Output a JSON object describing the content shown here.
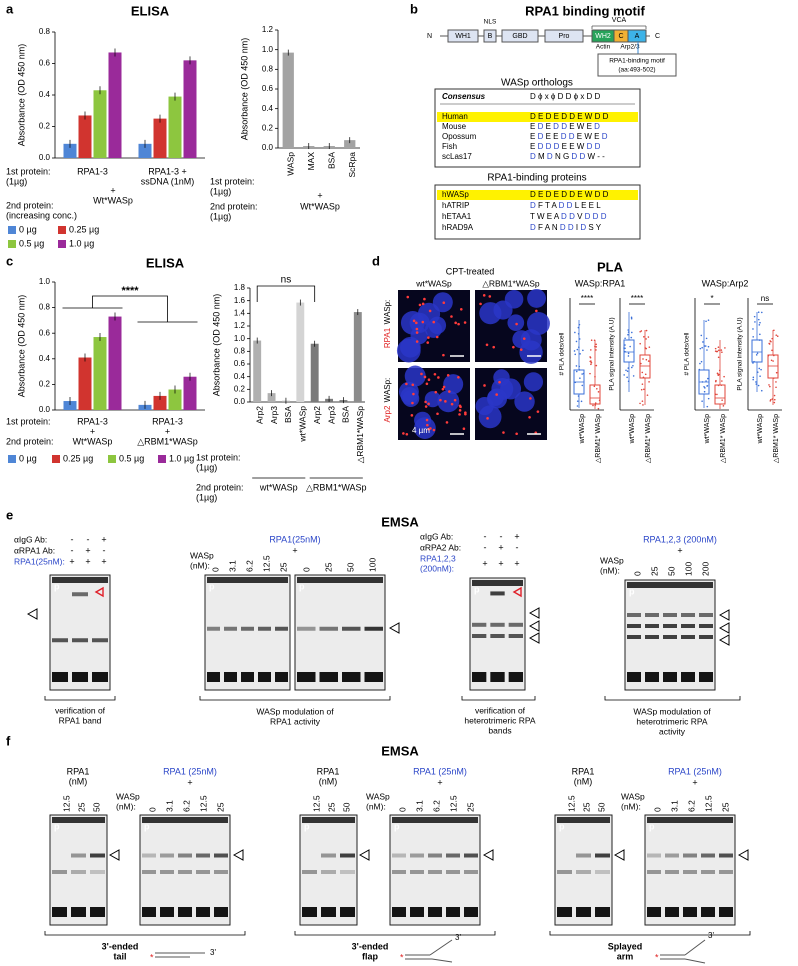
{
  "panel_a": {
    "label": "a",
    "title": "ELISA",
    "chart_1": {
      "type": "bar",
      "y_label": "Absorbance (OD 450 nm)",
      "ylim": [
        0,
        0.8
      ],
      "yticks": [
        {
          "value": 0,
          "label": "0.0"
        },
        {
          "value": 0.2,
          "label": "0.2"
        },
        {
          "value": 0.4,
          "label": "0.4"
        },
        {
          "value": 0.6,
          "label": "0.6"
        },
        {
          "value": 0.8,
          "label": "0.8"
        }
      ],
      "categories": [
        [
          "RPA1-3"
        ],
        [
          "RPA1-3 +",
          "ssDNA (1nM)"
        ]
      ],
      "series": [
        {
          "name": "0 µg",
          "color": "#4f86d6",
          "values": [
            0.09,
            0.09
          ]
        },
        {
          "name": "0.25 µg",
          "color": "#d1342f",
          "values": [
            0.27,
            0.25
          ]
        },
        {
          "name": "0.5 µg",
          "color": "#8dc63f",
          "values": [
            0.43,
            0.39
          ]
        },
        {
          "name": "1.0 µg",
          "color": "#9a2a9a",
          "values": [
            0.67,
            0.62
          ]
        }
      ],
      "first_protein": [
        "1st protein:",
        "(1µg)"
      ],
      "plus": "+",
      "second_protein_name": "Wt*WASp",
      "second_protein": [
        "2nd protein:",
        "(increasing conc.)"
      ]
    },
    "chart_2": {
      "type": "bar",
      "y_label": "Absorbance (OD 450 nm)",
      "ylim": [
        0,
        1.2
      ],
      "yticks": [
        {
          "value": 0,
          "label": "0.0"
        },
        {
          "value": 0.2,
          "label": "0.2"
        },
        {
          "value": 0.4,
          "label": "0.4"
        },
        {
          "value": 0.6,
          "label": "0.6"
        },
        {
          "value": 0.8,
          "label": "0.8"
        },
        {
          "value": 1,
          "label": "1.0"
        },
        {
          "value": 1.2,
          "label": "1.2"
        }
      ],
      "categories": [
        "WASp",
        "MAX",
        "BSA",
        "ScRpa"
      ],
      "values": [
        0.97,
        0.02,
        0.02,
        0.08
      ],
      "color": "#a3a3a3",
      "first_protein": [
        "1st protein:",
        "(1µg)"
      ],
      "plus": "+",
      "second_protein_name": "Wt*WASp",
      "second_protein": [
        "2nd protein:",
        "(1µg)"
      ]
    }
  },
  "panel_b": {
    "label": "b",
    "title": "RPA1 binding motif",
    "domains": {
      "n": "N",
      "c": "C",
      "boxes": [
        "WH1",
        "B",
        "GBD",
        "Pro",
        "WH2",
        "C",
        "A"
      ],
      "nls": "NLS",
      "vca": "VCA",
      "actin": "Actin",
      "arp": "Arp2/3",
      "motif": [
        "RPA1-binding motif",
        "(aa:493-502)"
      ]
    },
    "orthologs": {
      "title": "WASp orthologs",
      "header": [
        "Consensus",
        "D ϕ x ϕ D D ϕ x D D"
      ],
      "rows": [
        [
          "Human",
          "D E D E D D E W D D"
        ],
        [
          "Mouse",
          "E D E D D E W E D"
        ],
        [
          "Opossum",
          "E D E E D D E W E D"
        ],
        [
          "Fish",
          "E D D D E E W D D"
        ],
        [
          "scLas17",
          "D M D N G D D W - -"
        ]
      ]
    },
    "binding": {
      "title": "RPA1-binding proteins",
      "rows": [
        [
          "hWASp",
          "D E D E D D E W D D"
        ],
        [
          "hATRIP",
          "D F T A D D L E E L"
        ],
        [
          "hETAA1",
          "T W E A D D V D D D"
        ],
        [
          "hRAD9A",
          "D F A N D D I D S Y"
        ]
      ]
    }
  },
  "panel_c": {
    "label": "c",
    "title": "ELISA",
    "chart_1": {
      "type": "bar",
      "y_label": "Absorbance (OD 450 nm)",
      "ylim": [
        0,
        1
      ],
      "yticks": [
        {
          "value": 0,
          "label": "0.0"
        },
        {
          "value": 0.2,
          "label": "0.2"
        },
        {
          "value": 0.4,
          "label": "0.4"
        },
        {
          "value": 0.6,
          "label": "0.6"
        },
        {
          "value": 0.8,
          "label": "0.8"
        },
        {
          "value": 1,
          "label": "1.0"
        }
      ],
      "categories": [
        [
          "RPA1-3"
        ],
        [
          "RPA1-3"
        ]
      ],
      "series": [
        {
          "name": "0 µg",
          "color": "#4f86d6",
          "values": [
            0.07,
            0.04
          ]
        },
        {
          "name": "0.25 µg",
          "color": "#d1342f",
          "values": [
            0.41,
            0.11
          ]
        },
        {
          "name": "0.5 µg",
          "color": "#8dc63f",
          "values": [
            0.57,
            0.16
          ]
        },
        {
          "name": "1.0 µg",
          "color": "#9a2a9a",
          "values": [
            0.73,
            0.26
          ]
        }
      ],
      "annotation": "****",
      "first_protein": "1st protein:",
      "plus": [
        "+",
        "+"
      ],
      "second_protein_names": [
        "Wt*WASp",
        "△RBM1*WASp"
      ],
      "second_protein": "2nd protein:"
    },
    "chart_2": {
      "type": "bar",
      "y_label": "Absorbance (OD 450 nm)",
      "ylim": [
        0,
        1.8
      ],
      "yticks": [
        {
          "value": 0,
          "label": "0.0"
        },
        {
          "value": 0.2,
          "label": "0.2"
        },
        {
          "value": 0.4,
          "label": "0.4"
        },
        {
          "value": 0.6,
          "label": "0.6"
        },
        {
          "value": 0.8,
          "label": "0.8"
        },
        {
          "value": 1,
          "label": "1.0"
        },
        {
          "value": 1.2,
          "label": "1.2"
        },
        {
          "value": 1.4,
          "label": "1.4"
        },
        {
          "value": 1.6,
          "label": "1.6"
        },
        {
          "value": 1.8,
          "label": "1.8"
        }
      ],
      "categories": [
        "Arp2",
        "Arp3",
        "BSA",
        "wt*WASp",
        "Arp2",
        "Arp3",
        "BSA",
        "△RBM1*WASp"
      ],
      "values": [
        0.97,
        0.14,
        0.02,
        1.57,
        0.92,
        0.05,
        0.03,
        1.42
      ],
      "colors": [
        "#b0b0b0",
        "#b0b0b0",
        "#b0b0b0",
        "#d4d4d4",
        "#7a7a7a",
        "#7a7a7a",
        "#7a7a7a",
        "#8c8c8c"
      ],
      "annotation": "ns",
      "first_protein": [
        "1st protein:",
        "(1µg)"
      ],
      "second_protein_names": [
        "wt*WASp",
        "△RBM1*WASp"
      ],
      "second_protein": [
        "2nd protein:",
        "(1µg)"
      ]
    }
  },
  "panel_d": {
    "label": "d",
    "title": "PLA",
    "subtitle": "CPT-treated",
    "columns": [
      "wt*WASp",
      "△RBM1*WASp"
    ],
    "rows": [
      "WASp:",
      "RPA1",
      "WASp:",
      "Arp2"
    ],
    "scale": "4 µm",
    "plots": [
      {
        "title": "WASp:RPA1",
        "y_labels": [
          "# PLA dots/cell",
          "PLA signal intensity (A.U)"
        ],
        "significance": [
          "****",
          "****"
        ]
      },
      {
        "title": "WASp:Arp2",
        "y_labels": [
          "# PLA dots/cell",
          "PLA signal intensity (A.U)"
        ],
        "significance": [
          "*",
          "ns"
        ]
      }
    ],
    "x_labels": [
      "wt*WASp",
      "△RBM1* WASp"
    ]
  },
  "panel_e": {
    "label": "e",
    "title": "EMSA",
    "lane_label": "p",
    "gel_1": {
      "row_labels": [
        [
          "αIgG Ab:"
        ],
        [
          "αRPA1 Ab:"
        ],
        [
          "RPA1(25nM):"
        ]
      ],
      "signs": [
        [
          "-",
          "-",
          "+"
        ],
        [
          "-",
          "+",
          "-"
        ],
        [
          "+",
          "+",
          "+"
        ]
      ],
      "caption": [
        "verification of",
        "RPA1 band"
      ]
    },
    "gel_2": {
      "protein": "RPA1(25nM)",
      "plus": "+",
      "wasp": [
        "WASp",
        "(nM):"
      ],
      "conc_a": [
        "0",
        "3.1",
        "6.2",
        "12.5",
        "25"
      ],
      "conc_b": [
        "0",
        "25",
        "50",
        "100"
      ],
      "caption": [
        "WASp modulation of",
        "RPA1 activity"
      ]
    },
    "gel_3": {
      "row_labels": [
        [
          "αIgG Ab:"
        ],
        [
          "αRPA2 Ab:"
        ],
        [
          "RPA1,2,3",
          "(200nM):"
        ]
      ],
      "signs": [
        [
          "-",
          "-",
          "+"
        ],
        [
          "-",
          "+",
          "-"
        ],
        [
          "+",
          "+",
          "+"
        ]
      ],
      "caption": [
        "verification of",
        "heterotrimeric RPA",
        "bands"
      ]
    },
    "gel_4": {
      "protein": "RPA1,2,3 (200nM)",
      "plus": "+",
      "wasp": [
        "WASp",
        "(nM):"
      ],
      "conc": [
        "0",
        "25",
        "50",
        "100",
        "200"
      ],
      "caption": [
        "WASp modulation of",
        "heterotrimeric RPA",
        "activity"
      ]
    }
  },
  "panel_f": {
    "label": "f",
    "title": "EMSA",
    "lane_label": "p",
    "groups": [
      {
        "rpa1": [
          "RPA1",
          "(nM)"
        ],
        "rpa1_conc": [
          "12.5",
          "25",
          "50"
        ],
        "protein": "RPA1 (25nM)",
        "plus": "+",
        "wasp": [
          "WASp",
          "(nM):"
        ],
        "conc": [
          "0",
          "3.1",
          "6.2",
          "12.5",
          "25"
        ],
        "caption": [
          "3'-ended",
          "tail"
        ],
        "end": "3'"
      },
      {
        "rpa1": [
          "RPA1",
          "(nM)"
        ],
        "rpa1_conc": [
          "12.5",
          "25",
          "50"
        ],
        "protein": "RPA1 (25nM)",
        "plus": "+",
        "wasp": [
          "WASp",
          "(nM):"
        ],
        "conc": [
          "0",
          "3.1",
          "6.2",
          "12.5",
          "25"
        ],
        "caption": [
          "3'-ended",
          "flap"
        ],
        "end": "3'"
      },
      {
        "rpa1": [
          "RPA1",
          "(nM)"
        ],
        "rpa1_conc": [
          "12.5",
          "25",
          "50"
        ],
        "protein": "RPA1 (25nM)",
        "plus": "+",
        "wasp": [
          "WASp",
          "(nM):"
        ],
        "conc": [
          "0",
          "3.1",
          "6.2",
          "12.5",
          "25"
        ],
        "caption": [
          "Splayed",
          "arm"
        ],
        "end": "3'"
      }
    ]
  }
}
